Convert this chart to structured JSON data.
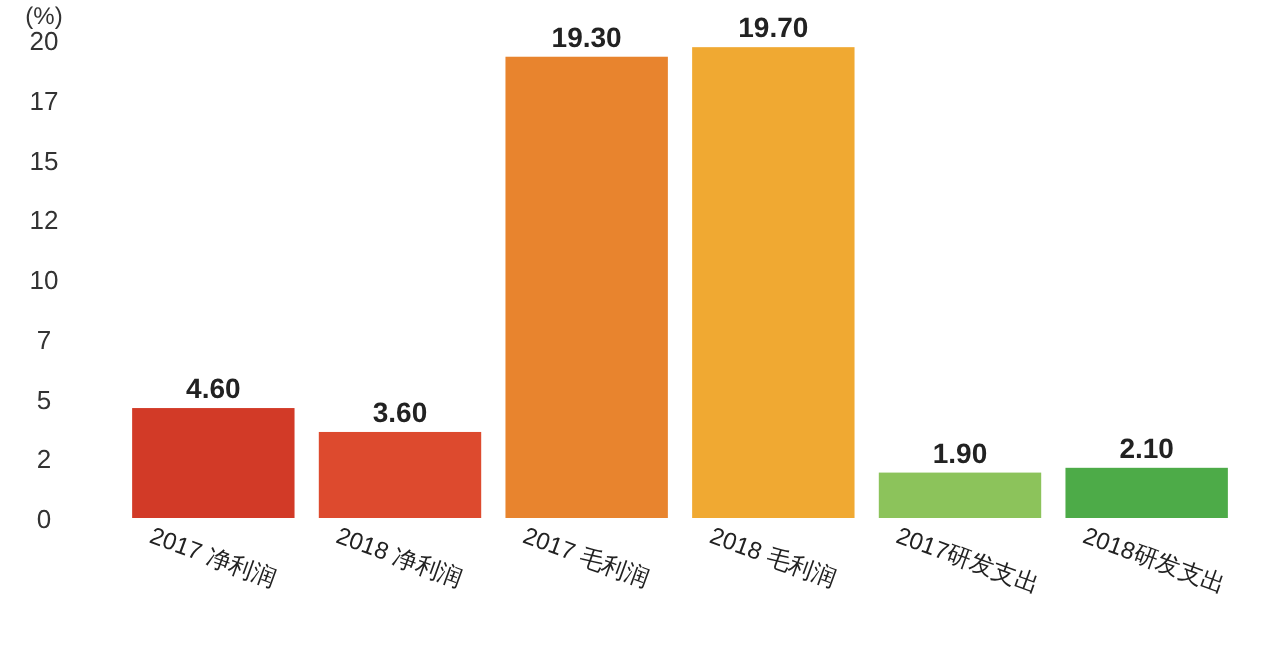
{
  "chart_data": {
    "type": "bar",
    "ylabel": "(%)",
    "categories": [
      "2017 净利润",
      "2018 净利润",
      "2017  毛利润",
      "2018  毛利润",
      "2017研发支出",
      "2018研发支出"
    ],
    "values": [
      4.6,
      3.6,
      19.3,
      19.7,
      1.9,
      2.1
    ],
    "value_labels": [
      "4.60",
      "3.60",
      "19.30",
      "19.70",
      "1.90",
      "2.10"
    ],
    "colors": [
      "#d23a27",
      "#dd4a2e",
      "#e8842e",
      "#f0a932",
      "#8cc35b",
      "#4dab48"
    ],
    "ylim": [
      0,
      20
    ],
    "yticks": [
      0,
      {
        "value": 2.5,
        "label": "2"
      },
      5,
      {
        "value": 7.5,
        "label": "7"
      },
      10,
      {
        "value": 12.5,
        "label": "12"
      },
      15,
      {
        "value": 17.5,
        "label": "17"
      },
      20
    ],
    "grid": false
  }
}
